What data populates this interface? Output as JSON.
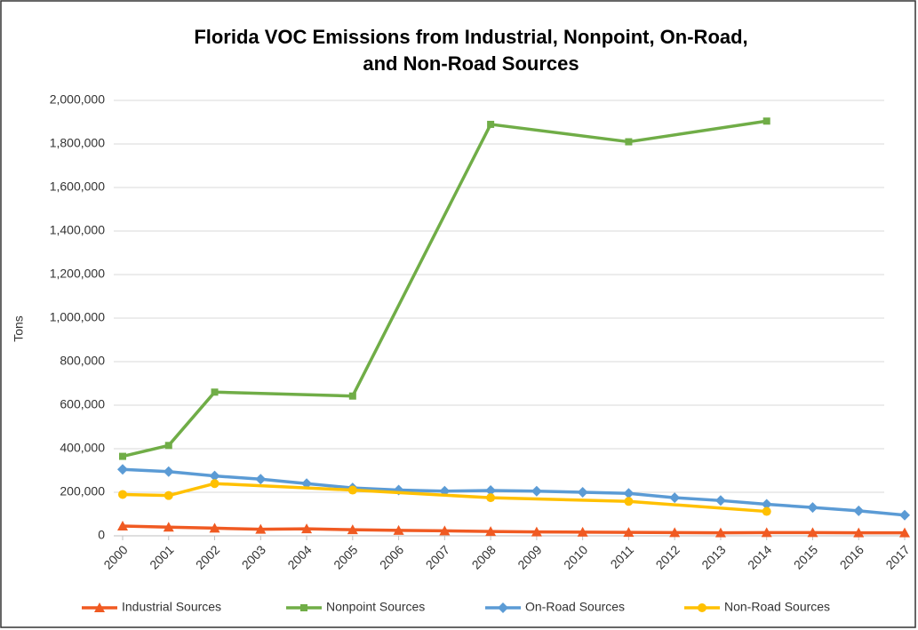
{
  "chart_data": {
    "type": "line",
    "title": [
      "Florida VOC Emissions from Industrial, Nonpoint, On-Road,",
      "and Non-Road Sources"
    ],
    "y_label": "Tons",
    "xlim": [
      2000,
      2017
    ],
    "xticks": [
      2000,
      2001,
      2002,
      2003,
      2004,
      2005,
      2006,
      2007,
      2008,
      2009,
      2010,
      2011,
      2012,
      2013,
      2014,
      2015,
      2016,
      2017
    ],
    "ylim": [
      0,
      2000000
    ],
    "yticks": [
      0,
      {
        "value": 200000,
        "label": "200,000"
      },
      {
        "value": 400000,
        "label": "400,000"
      },
      {
        "value": 600000,
        "label": "600,000"
      },
      {
        "value": 800000,
        "label": "800,000"
      },
      {
        "value": 1000000,
        "label": "1,000,000"
      },
      {
        "value": 1200000,
        "label": "1,200,000"
      },
      {
        "value": 1400000,
        "label": "1,400,000"
      },
      {
        "value": 1600000,
        "label": "1,600,000"
      },
      {
        "value": 1800000,
        "label": "1,800,000"
      },
      {
        "value": 2000000,
        "label": "2,000,000"
      }
    ],
    "grid": true,
    "legend": "bottom",
    "series": [
      {
        "name": "Industrial Sources",
        "color": "#f05a22",
        "marker": "triangle",
        "x": [
          2000,
          2001,
          2002,
          2003,
          2004,
          2005,
          2006,
          2007,
          2008,
          2009,
          2010,
          2011,
          2012,
          2013,
          2014,
          2015,
          2016,
          2017
        ],
        "values": [
          45000,
          40000,
          35000,
          30000,
          32000,
          28000,
          25000,
          23000,
          20000,
          18000,
          17000,
          16000,
          15000,
          14000,
          15000,
          15000,
          14000,
          14000
        ]
      },
      {
        "name": "Nonpoint Sources",
        "color": "#70ad47",
        "marker": "square",
        "x": [
          2000,
          2001,
          2002,
          2005,
          2008,
          2011,
          2014
        ],
        "values": [
          365000,
          415000,
          660000,
          642000,
          1890000,
          1810000,
          1905000
        ]
      },
      {
        "name": "On-Road Sources",
        "color": "#5b9bd5",
        "marker": "diamond",
        "x": [
          2000,
          2001,
          2002,
          2003,
          2004,
          2005,
          2006,
          2007,
          2008,
          2009,
          2010,
          2011,
          2012,
          2013,
          2014,
          2015,
          2016,
          2017
        ],
        "values": [
          305000,
          295000,
          275000,
          260000,
          240000,
          220000,
          210000,
          205000,
          208000,
          205000,
          200000,
          195000,
          175000,
          162000,
          145000,
          130000,
          115000,
          95000
        ]
      },
      {
        "name": "Non-Road Sources",
        "color": "#ffc000",
        "marker": "circle",
        "x": [
          2000,
          2001,
          2002,
          2005,
          2008,
          2011,
          2014
        ],
        "values": [
          190000,
          185000,
          240000,
          210000,
          175000,
          158000,
          112000
        ]
      }
    ]
  }
}
